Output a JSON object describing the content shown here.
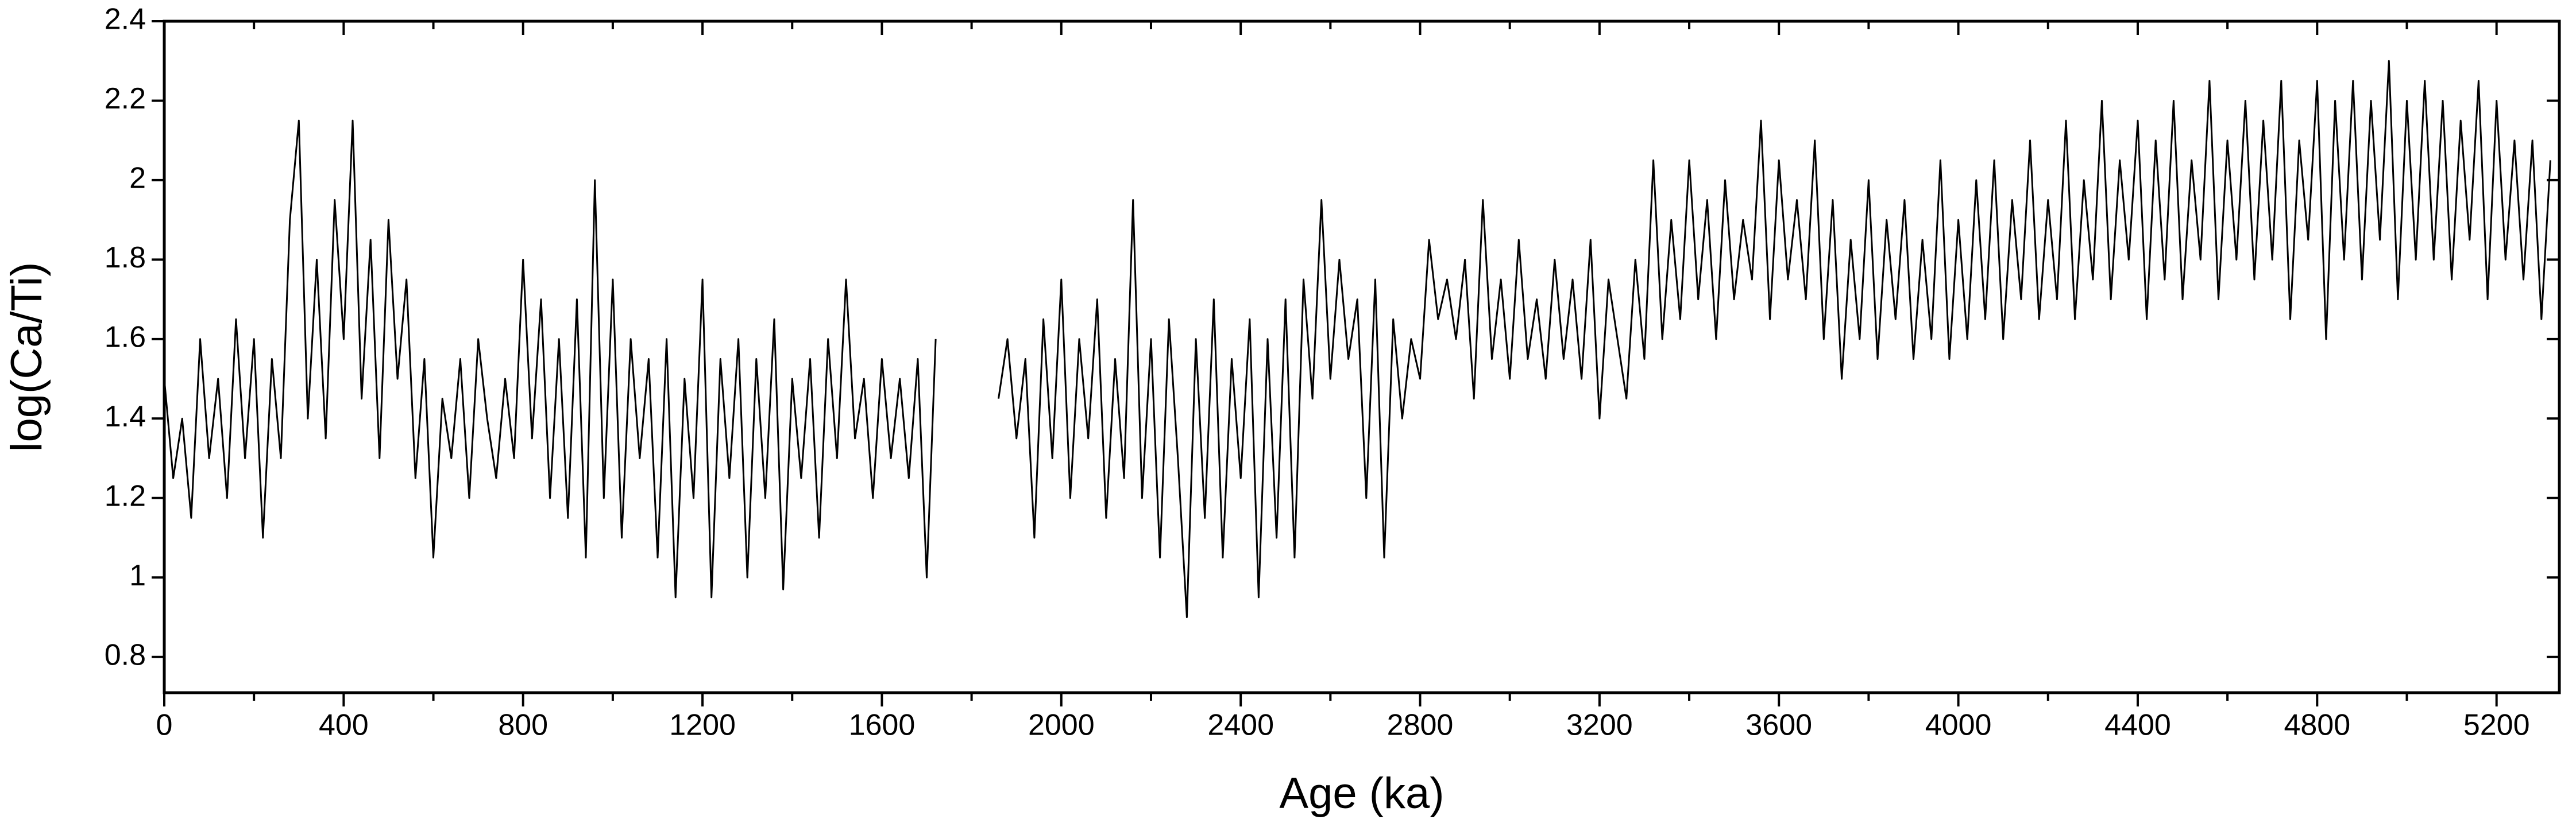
{
  "chart_data": {
    "type": "line",
    "xlabel": "Age (ka)",
    "ylabel": "log(Ca/Ti)",
    "xlim": [
      0,
      5340
    ],
    "ylim": [
      0.71,
      2.4
    ],
    "xticks": [
      0,
      400,
      800,
      1200,
      1600,
      2000,
      2400,
      2800,
      3200,
      3600,
      4000,
      4400,
      4800,
      5200
    ],
    "xticks_minor": [
      200,
      600,
      1000,
      1400,
      1800,
      2200,
      2600,
      3000,
      3400,
      3800,
      4200,
      4600,
      5000
    ],
    "yticks": [
      0.8,
      1,
      1.2,
      1.4,
      1.6,
      1.8,
      2,
      2.2,
      2.4
    ],
    "x": [
      0,
      20,
      40,
      60,
      80,
      100,
      120,
      140,
      160,
      180,
      200,
      220,
      240,
      260,
      280,
      300,
      320,
      340,
      360,
      380,
      400,
      420,
      440,
      460,
      480,
      500,
      520,
      540,
      560,
      580,
      600,
      620,
      640,
      660,
      680,
      700,
      720,
      740,
      760,
      780,
      800,
      820,
      840,
      860,
      880,
      900,
      920,
      940,
      960,
      980,
      1000,
      1020,
      1040,
      1060,
      1080,
      1100,
      1120,
      1140,
      1160,
      1180,
      1200,
      1220,
      1240,
      1260,
      1280,
      1300,
      1320,
      1340,
      1360,
      1380,
      1400,
      1420,
      1440,
      1460,
      1480,
      1500,
      1520,
      1540,
      1560,
      1580,
      1600,
      1620,
      1640,
      1660,
      1680,
      1700,
      1720,
      1790,
      1860,
      1880,
      1900,
      1920,
      1940,
      1960,
      1980,
      2000,
      2020,
      2040,
      2060,
      2080,
      2100,
      2120,
      2140,
      2160,
      2180,
      2200,
      2220,
      2240,
      2260,
      2280,
      2300,
      2320,
      2340,
      2360,
      2380,
      2400,
      2420,
      2440,
      2460,
      2480,
      2500,
      2520,
      2540,
      2560,
      2580,
      2600,
      2620,
      2640,
      2660,
      2680,
      2700,
      2720,
      2740,
      2760,
      2780,
      2800,
      2820,
      2840,
      2860,
      2880,
      2900,
      2920,
      2940,
      2960,
      2980,
      3000,
      3020,
      3040,
      3060,
      3080,
      3100,
      3120,
      3140,
      3160,
      3180,
      3200,
      3220,
      3240,
      3260,
      3280,
      3300,
      3320,
      3340,
      3360,
      3380,
      3400,
      3420,
      3440,
      3460,
      3480,
      3500,
      3520,
      3540,
      3560,
      3580,
      3600,
      3620,
      3640,
      3660,
      3680,
      3700,
      3720,
      3740,
      3760,
      3780,
      3800,
      3820,
      3840,
      3860,
      3880,
      3900,
      3920,
      3940,
      3960,
      3980,
      4000,
      4020,
      4040,
      4060,
      4080,
      4100,
      4120,
      4140,
      4160,
      4180,
      4200,
      4220,
      4240,
      4260,
      4280,
      4300,
      4320,
      4340,
      4360,
      4380,
      4400,
      4420,
      4440,
      4460,
      4480,
      4500,
      4520,
      4540,
      4560,
      4580,
      4600,
      4620,
      4640,
      4660,
      4680,
      4700,
      4720,
      4740,
      4760,
      4780,
      4800,
      4820,
      4840,
      4860,
      4880,
      4900,
      4920,
      4940,
      4960,
      4980,
      5000,
      5020,
      5040,
      5060,
      5080,
      5100,
      5120,
      5140,
      5160,
      5180,
      5200,
      5220,
      5240,
      5260,
      5280,
      5300,
      5320
    ],
    "series": [
      {
        "color": "#000000",
        "values": [
          1.5,
          1.25,
          1.4,
          1.15,
          1.6,
          1.3,
          1.5,
          1.2,
          1.65,
          1.3,
          1.6,
          1.1,
          1.55,
          1.3,
          1.9,
          2.15,
          1.4,
          1.8,
          1.35,
          1.95,
          1.6,
          2.15,
          1.45,
          1.85,
          1.3,
          1.9,
          1.5,
          1.75,
          1.25,
          1.55,
          1.05,
          1.45,
          1.3,
          1.55,
          1.2,
          1.6,
          1.4,
          1.25,
          1.5,
          1.3,
          1.8,
          1.35,
          1.7,
          1.2,
          1.6,
          1.15,
          1.7,
          1.05,
          2.0,
          1.2,
          1.75,
          1.1,
          1.6,
          1.3,
          1.55,
          1.05,
          1.6,
          0.95,
          1.5,
          1.2,
          1.75,
          0.95,
          1.55,
          1.25,
          1.6,
          1.0,
          1.55,
          1.2,
          1.65,
          0.97,
          1.5,
          1.25,
          1.55,
          1.1,
          1.6,
          1.3,
          1.75,
          1.35,
          1.5,
          1.2,
          1.55,
          1.3,
          1.5,
          1.25,
          1.55,
          1.0,
          1.6,
          null,
          1.45,
          1.6,
          1.35,
          1.55,
          1.1,
          1.65,
          1.3,
          1.75,
          1.2,
          1.6,
          1.35,
          1.7,
          1.15,
          1.55,
          1.25,
          1.95,
          1.2,
          1.6,
          1.05,
          1.65,
          1.3,
          0.9,
          1.6,
          1.15,
          1.7,
          1.05,
          1.55,
          1.25,
          1.65,
          0.95,
          1.6,
          1.1,
          1.7,
          1.05,
          1.75,
          1.45,
          1.95,
          1.5,
          1.8,
          1.55,
          1.7,
          1.2,
          1.75,
          1.05,
          1.65,
          1.4,
          1.6,
          1.5,
          1.85,
          1.65,
          1.75,
          1.6,
          1.8,
          1.45,
          1.95,
          1.55,
          1.75,
          1.5,
          1.85,
          1.55,
          1.7,
          1.5,
          1.8,
          1.55,
          1.75,
          1.5,
          1.85,
          1.4,
          1.75,
          1.6,
          1.45,
          1.8,
          1.55,
          2.05,
          1.6,
          1.9,
          1.65,
          2.05,
          1.7,
          1.95,
          1.6,
          2.0,
          1.7,
          1.9,
          1.75,
          2.15,
          1.65,
          2.05,
          1.75,
          1.95,
          1.7,
          2.1,
          1.6,
          1.95,
          1.5,
          1.85,
          1.6,
          2.0,
          1.55,
          1.9,
          1.65,
          1.95,
          1.55,
          1.85,
          1.6,
          2.05,
          1.55,
          1.9,
          1.6,
          2.0,
          1.65,
          2.05,
          1.6,
          1.95,
          1.7,
          2.1,
          1.65,
          1.95,
          1.7,
          2.15,
          1.65,
          2.0,
          1.75,
          2.2,
          1.7,
          2.05,
          1.8,
          2.15,
          1.65,
          2.1,
          1.75,
          2.2,
          1.7,
          2.05,
          1.8,
          2.25,
          1.7,
          2.1,
          1.8,
          2.2,
          1.75,
          2.15,
          1.8,
          2.25,
          1.65,
          2.1,
          1.85,
          2.25,
          1.6,
          2.2,
          1.8,
          2.25,
          1.75,
          2.2,
          1.85,
          2.3,
          1.7,
          2.2,
          1.8,
          2.25,
          1.8,
          2.2,
          1.75,
          2.15,
          1.85,
          2.25,
          1.7,
          2.2,
          1.8,
          2.1,
          1.75,
          2.1,
          1.65,
          2.05
        ]
      }
    ]
  }
}
